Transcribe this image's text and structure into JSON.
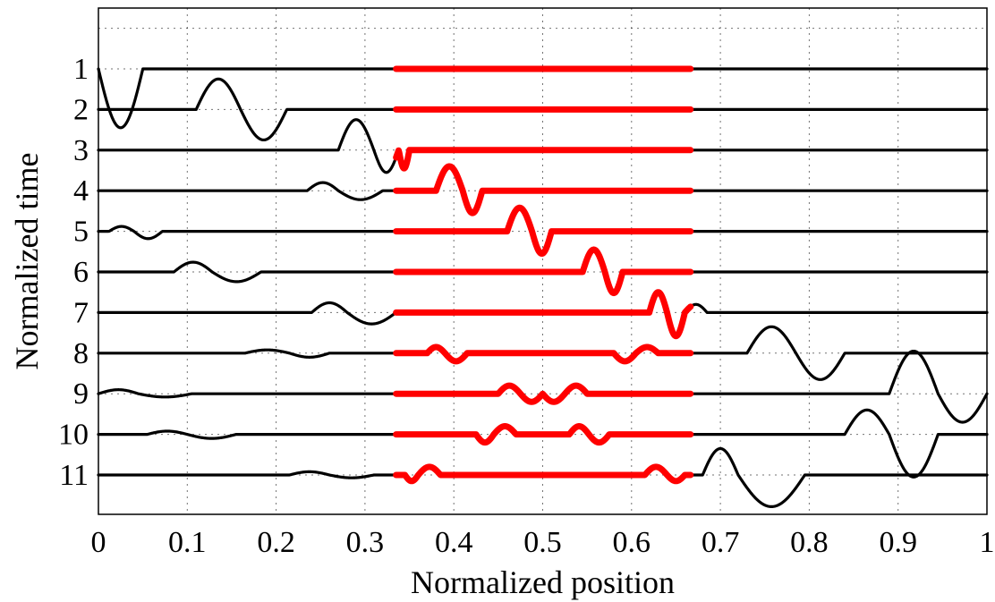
{
  "chart_data": {
    "type": "line",
    "title": "",
    "xlabel": "Normalized position",
    "ylabel": "Normalized time",
    "xlim": [
      0,
      1
    ],
    "x_ticks": [
      "0",
      "0.1",
      "0.2",
      "0.3",
      "0.4",
      "0.5",
      "0.6",
      "0.7",
      "0.8",
      "0.9",
      "1"
    ],
    "y_ticks": [
      "1",
      "2",
      "3",
      "4",
      "5",
      "6",
      "7",
      "8",
      "9",
      "10",
      "11"
    ],
    "grid": true,
    "colors": {
      "outside_region": "#000000",
      "highlighted_region": "#ff0000"
    },
    "highlighted_region_x": [
      0.335,
      0.667
    ],
    "pulse_amplitude_unit": "fraction of trace spacing",
    "series": [
      {
        "label": "1",
        "pulses": [
          {
            "x0": 0.0,
            "x1": 0.05,
            "amp": -1.45
          }
        ]
      },
      {
        "label": "2",
        "pulses": [
          {
            "x0": 0.11,
            "x1": 0.16,
            "amp": 0.75
          },
          {
            "x0": 0.16,
            "x1": 0.212,
            "amp": -0.75
          }
        ]
      },
      {
        "label": "3",
        "pulses": [
          {
            "x0": 0.27,
            "x1": 0.31,
            "amp": 0.75
          },
          {
            "x0": 0.31,
            "x1": 0.338,
            "amp": -0.55
          },
          {
            "x0": 0.338,
            "x1": 0.35,
            "amp": -0.45
          }
        ]
      },
      {
        "label": "4",
        "pulses": [
          {
            "x0": 0.235,
            "x1": 0.27,
            "amp": 0.2
          },
          {
            "x0": 0.27,
            "x1": 0.32,
            "amp": -0.22
          },
          {
            "x0": 0.38,
            "x1": 0.41,
            "amp": 0.6
          },
          {
            "x0": 0.41,
            "x1": 0.432,
            "amp": -0.55
          }
        ]
      },
      {
        "label": "5",
        "pulses": [
          {
            "x0": 0.012,
            "x1": 0.04,
            "amp": 0.12
          },
          {
            "x0": 0.04,
            "x1": 0.072,
            "amp": -0.18
          },
          {
            "x0": 0.46,
            "x1": 0.488,
            "amp": 0.58
          },
          {
            "x0": 0.488,
            "x1": 0.51,
            "amp": -0.55
          }
        ]
      },
      {
        "label": "6",
        "pulses": [
          {
            "x0": 0.085,
            "x1": 0.128,
            "amp": 0.24
          },
          {
            "x0": 0.128,
            "x1": 0.183,
            "amp": -0.24
          },
          {
            "x0": 0.545,
            "x1": 0.57,
            "amp": 0.55
          },
          {
            "x0": 0.57,
            "x1": 0.59,
            "amp": -0.52
          }
        ]
      },
      {
        "label": "7",
        "pulses": [
          {
            "x0": 0.24,
            "x1": 0.28,
            "amp": 0.24
          },
          {
            "x0": 0.28,
            "x1": 0.335,
            "amp": -0.28
          },
          {
            "x0": 0.62,
            "x1": 0.64,
            "amp": 0.5
          },
          {
            "x0": 0.64,
            "x1": 0.66,
            "amp": -0.58
          },
          {
            "x0": 0.66,
            "x1": 0.685,
            "amp": 0.2
          }
        ]
      },
      {
        "label": "8",
        "pulses": [
          {
            "x0": 0.165,
            "x1": 0.215,
            "amp": 0.08
          },
          {
            "x0": 0.215,
            "x1": 0.26,
            "amp": -0.1
          },
          {
            "x0": 0.37,
            "x1": 0.39,
            "amp": 0.15
          },
          {
            "x0": 0.39,
            "x1": 0.415,
            "amp": -0.2
          },
          {
            "x0": 0.58,
            "x1": 0.605,
            "amp": -0.2
          },
          {
            "x0": 0.605,
            "x1": 0.63,
            "amp": 0.15
          },
          {
            "x0": 0.73,
            "x1": 0.785,
            "amp": 0.65
          },
          {
            "x0": 0.785,
            "x1": 0.84,
            "amp": -0.65
          }
        ]
      },
      {
        "label": "9",
        "pulses": [
          {
            "x0": 0.0,
            "x1": 0.045,
            "amp": 0.1
          },
          {
            "x0": 0.045,
            "x1": 0.105,
            "amp": -0.08
          },
          {
            "x0": 0.45,
            "x1": 0.475,
            "amp": 0.2
          },
          {
            "x0": 0.475,
            "x1": 0.5,
            "amp": -0.2
          },
          {
            "x0": 0.5,
            "x1": 0.525,
            "amp": -0.2
          },
          {
            "x0": 0.525,
            "x1": 0.55,
            "amp": 0.2
          },
          {
            "x0": 0.89,
            "x1": 0.945,
            "amp": 1.05
          },
          {
            "x0": 0.945,
            "x1": 1.0,
            "amp": -0.7
          }
        ]
      },
      {
        "label": "10",
        "pulses": [
          {
            "x0": 0.055,
            "x1": 0.1,
            "amp": 0.08
          },
          {
            "x0": 0.1,
            "x1": 0.155,
            "amp": -0.1
          },
          {
            "x0": 0.425,
            "x1": 0.445,
            "amp": -0.2
          },
          {
            "x0": 0.445,
            "x1": 0.47,
            "amp": 0.2
          },
          {
            "x0": 0.53,
            "x1": 0.552,
            "amp": 0.2
          },
          {
            "x0": 0.552,
            "x1": 0.575,
            "amp": -0.2
          },
          {
            "x0": 0.84,
            "x1": 0.89,
            "amp": 0.6
          },
          {
            "x0": 0.89,
            "x1": 0.945,
            "amp": -1.05
          }
        ]
      },
      {
        "label": "11",
        "pulses": [
          {
            "x0": 0.215,
            "x1": 0.26,
            "amp": 0.08
          },
          {
            "x0": 0.26,
            "x1": 0.31,
            "amp": -0.07
          },
          {
            "x0": 0.345,
            "x1": 0.36,
            "amp": -0.15
          },
          {
            "x0": 0.36,
            "x1": 0.385,
            "amp": 0.2
          },
          {
            "x0": 0.615,
            "x1": 0.64,
            "amp": 0.2
          },
          {
            "x0": 0.64,
            "x1": 0.66,
            "amp": -0.15
          },
          {
            "x0": 0.68,
            "x1": 0.72,
            "amp": 0.65
          },
          {
            "x0": 0.72,
            "x1": 0.795,
            "amp": -0.78
          }
        ]
      }
    ]
  }
}
